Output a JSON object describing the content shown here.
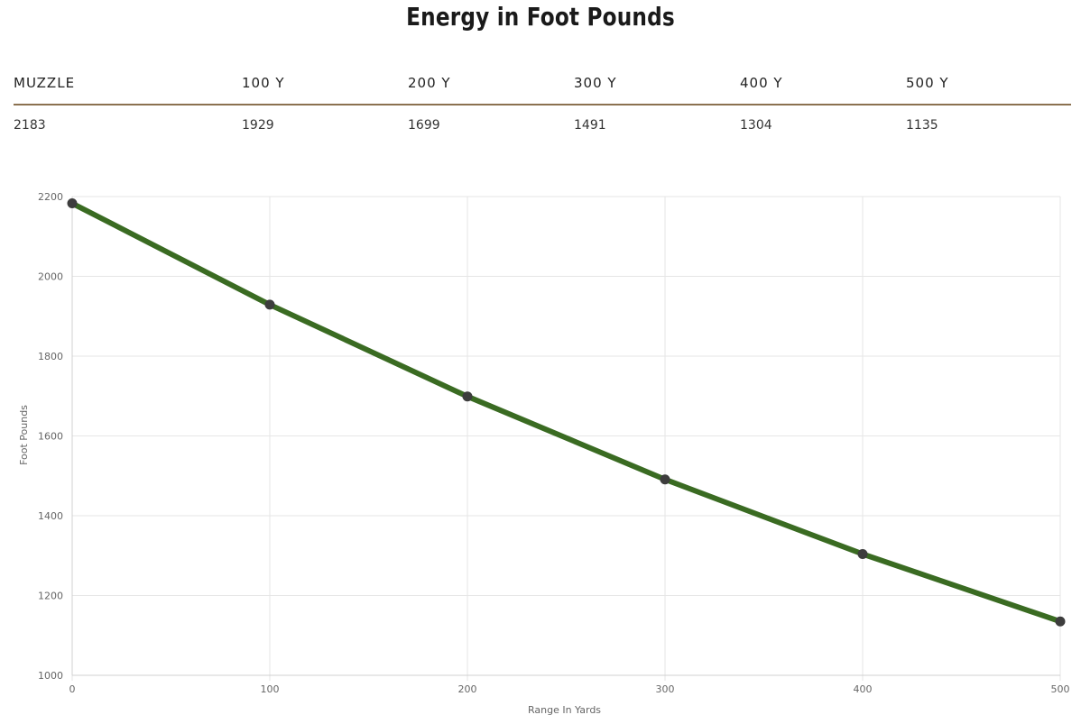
{
  "title": "Energy in Foot Pounds",
  "table": {
    "headers": [
      "MUZZLE",
      "100 Y",
      "200 Y",
      "300 Y",
      "400 Y",
      "500 Y"
    ],
    "values": [
      "2183",
      "1929",
      "1699",
      "1491",
      "1304",
      "1135"
    ]
  },
  "colors": {
    "line": "#3a6b22",
    "point": "#3d3d3d",
    "table_rule": "#8b7150",
    "grid": "#e6e6e6"
  },
  "chart_data": {
    "type": "line",
    "xlabel": "Range In Yards",
    "ylabel": "Foot Pounds",
    "x": [
      0,
      100,
      200,
      300,
      400,
      500
    ],
    "series": [
      {
        "values": [
          2183,
          1929,
          1699,
          1491,
          1304,
          1135
        ]
      }
    ],
    "xlim": [
      0,
      500
    ],
    "ylim": [
      1000,
      2200
    ],
    "xticks": [
      0,
      100,
      200,
      300,
      400,
      500
    ],
    "yticks": [
      1000,
      1200,
      1400,
      1600,
      1800,
      2000,
      2200
    ],
    "grid": true
  }
}
